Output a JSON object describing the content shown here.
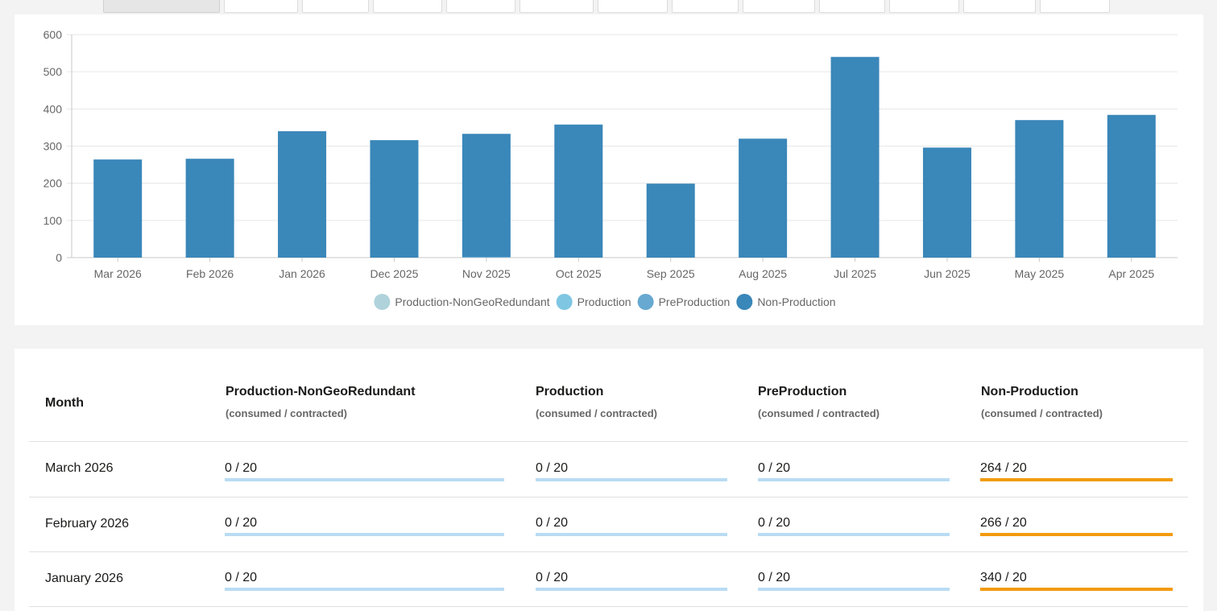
{
  "colors": {
    "nongeo": "#b0d3db",
    "production": "#7fc6e3",
    "preproduction": "#67a9d1",
    "nonproduction": "#3a87b9",
    "bar_ok": "#b9dcf3",
    "bar_over": "#f29b0f"
  },
  "chart_data": {
    "type": "bar",
    "stacked": true,
    "categories": [
      "Mar 2026",
      "Feb 2026",
      "Jan 2026",
      "Dec 2025",
      "Nov 2025",
      "Oct 2025",
      "Sep 2025",
      "Aug 2025",
      "Jul 2025",
      "Jun 2025",
      "May 2025",
      "Apr 2025"
    ],
    "series": [
      {
        "name": "Production-NonGeoRedundant",
        "color": "#b0d3db",
        "values": [
          0,
          0,
          0,
          0,
          0,
          0,
          0,
          0,
          0,
          0,
          0,
          0
        ]
      },
      {
        "name": "Production",
        "color": "#7fc6e3",
        "values": [
          0,
          0,
          0,
          0,
          0,
          0,
          0,
          0,
          0,
          0,
          0,
          0
        ]
      },
      {
        "name": "PreProduction",
        "color": "#67a9d1",
        "values": [
          0,
          0,
          0,
          0,
          2,
          0,
          0,
          0,
          0,
          0,
          0,
          0
        ]
      },
      {
        "name": "Non-Production",
        "color": "#3a87b9",
        "values": [
          264,
          266,
          340,
          316,
          331,
          358,
          199,
          320,
          540,
          296,
          370,
          384
        ]
      }
    ],
    "y_ticks": [
      "0",
      "100",
      "200",
      "300",
      "400",
      "500",
      "600"
    ],
    "ylim": [
      0,
      600
    ],
    "grid": true,
    "legend": "bottom-center"
  },
  "table": {
    "month_header": "Month",
    "sub_header": "(consumed / contracted)",
    "columns": [
      "Production-NonGeoRedundant",
      "Production",
      "PreProduction",
      "Non-Production"
    ],
    "rows": [
      {
        "month": "March 2026",
        "cells": [
          {
            "text": "0 / 20",
            "fraction": 0
          },
          {
            "text": "0 / 20",
            "fraction": 0
          },
          {
            "text": "0 / 20",
            "fraction": 0
          },
          {
            "text": "264 / 20",
            "fraction": 1
          }
        ]
      },
      {
        "month": "February 2026",
        "cells": [
          {
            "text": "0 / 20",
            "fraction": 0
          },
          {
            "text": "0 / 20",
            "fraction": 0
          },
          {
            "text": "0 / 20",
            "fraction": 0
          },
          {
            "text": "266 / 20",
            "fraction": 1
          }
        ]
      },
      {
        "month": "January 2026",
        "cells": [
          {
            "text": "0 / 20",
            "fraction": 0
          },
          {
            "text": "0 / 20",
            "fraction": 0
          },
          {
            "text": "0 / 20",
            "fraction": 0
          },
          {
            "text": "340 / 20",
            "fraction": 1
          }
        ]
      }
    ]
  }
}
